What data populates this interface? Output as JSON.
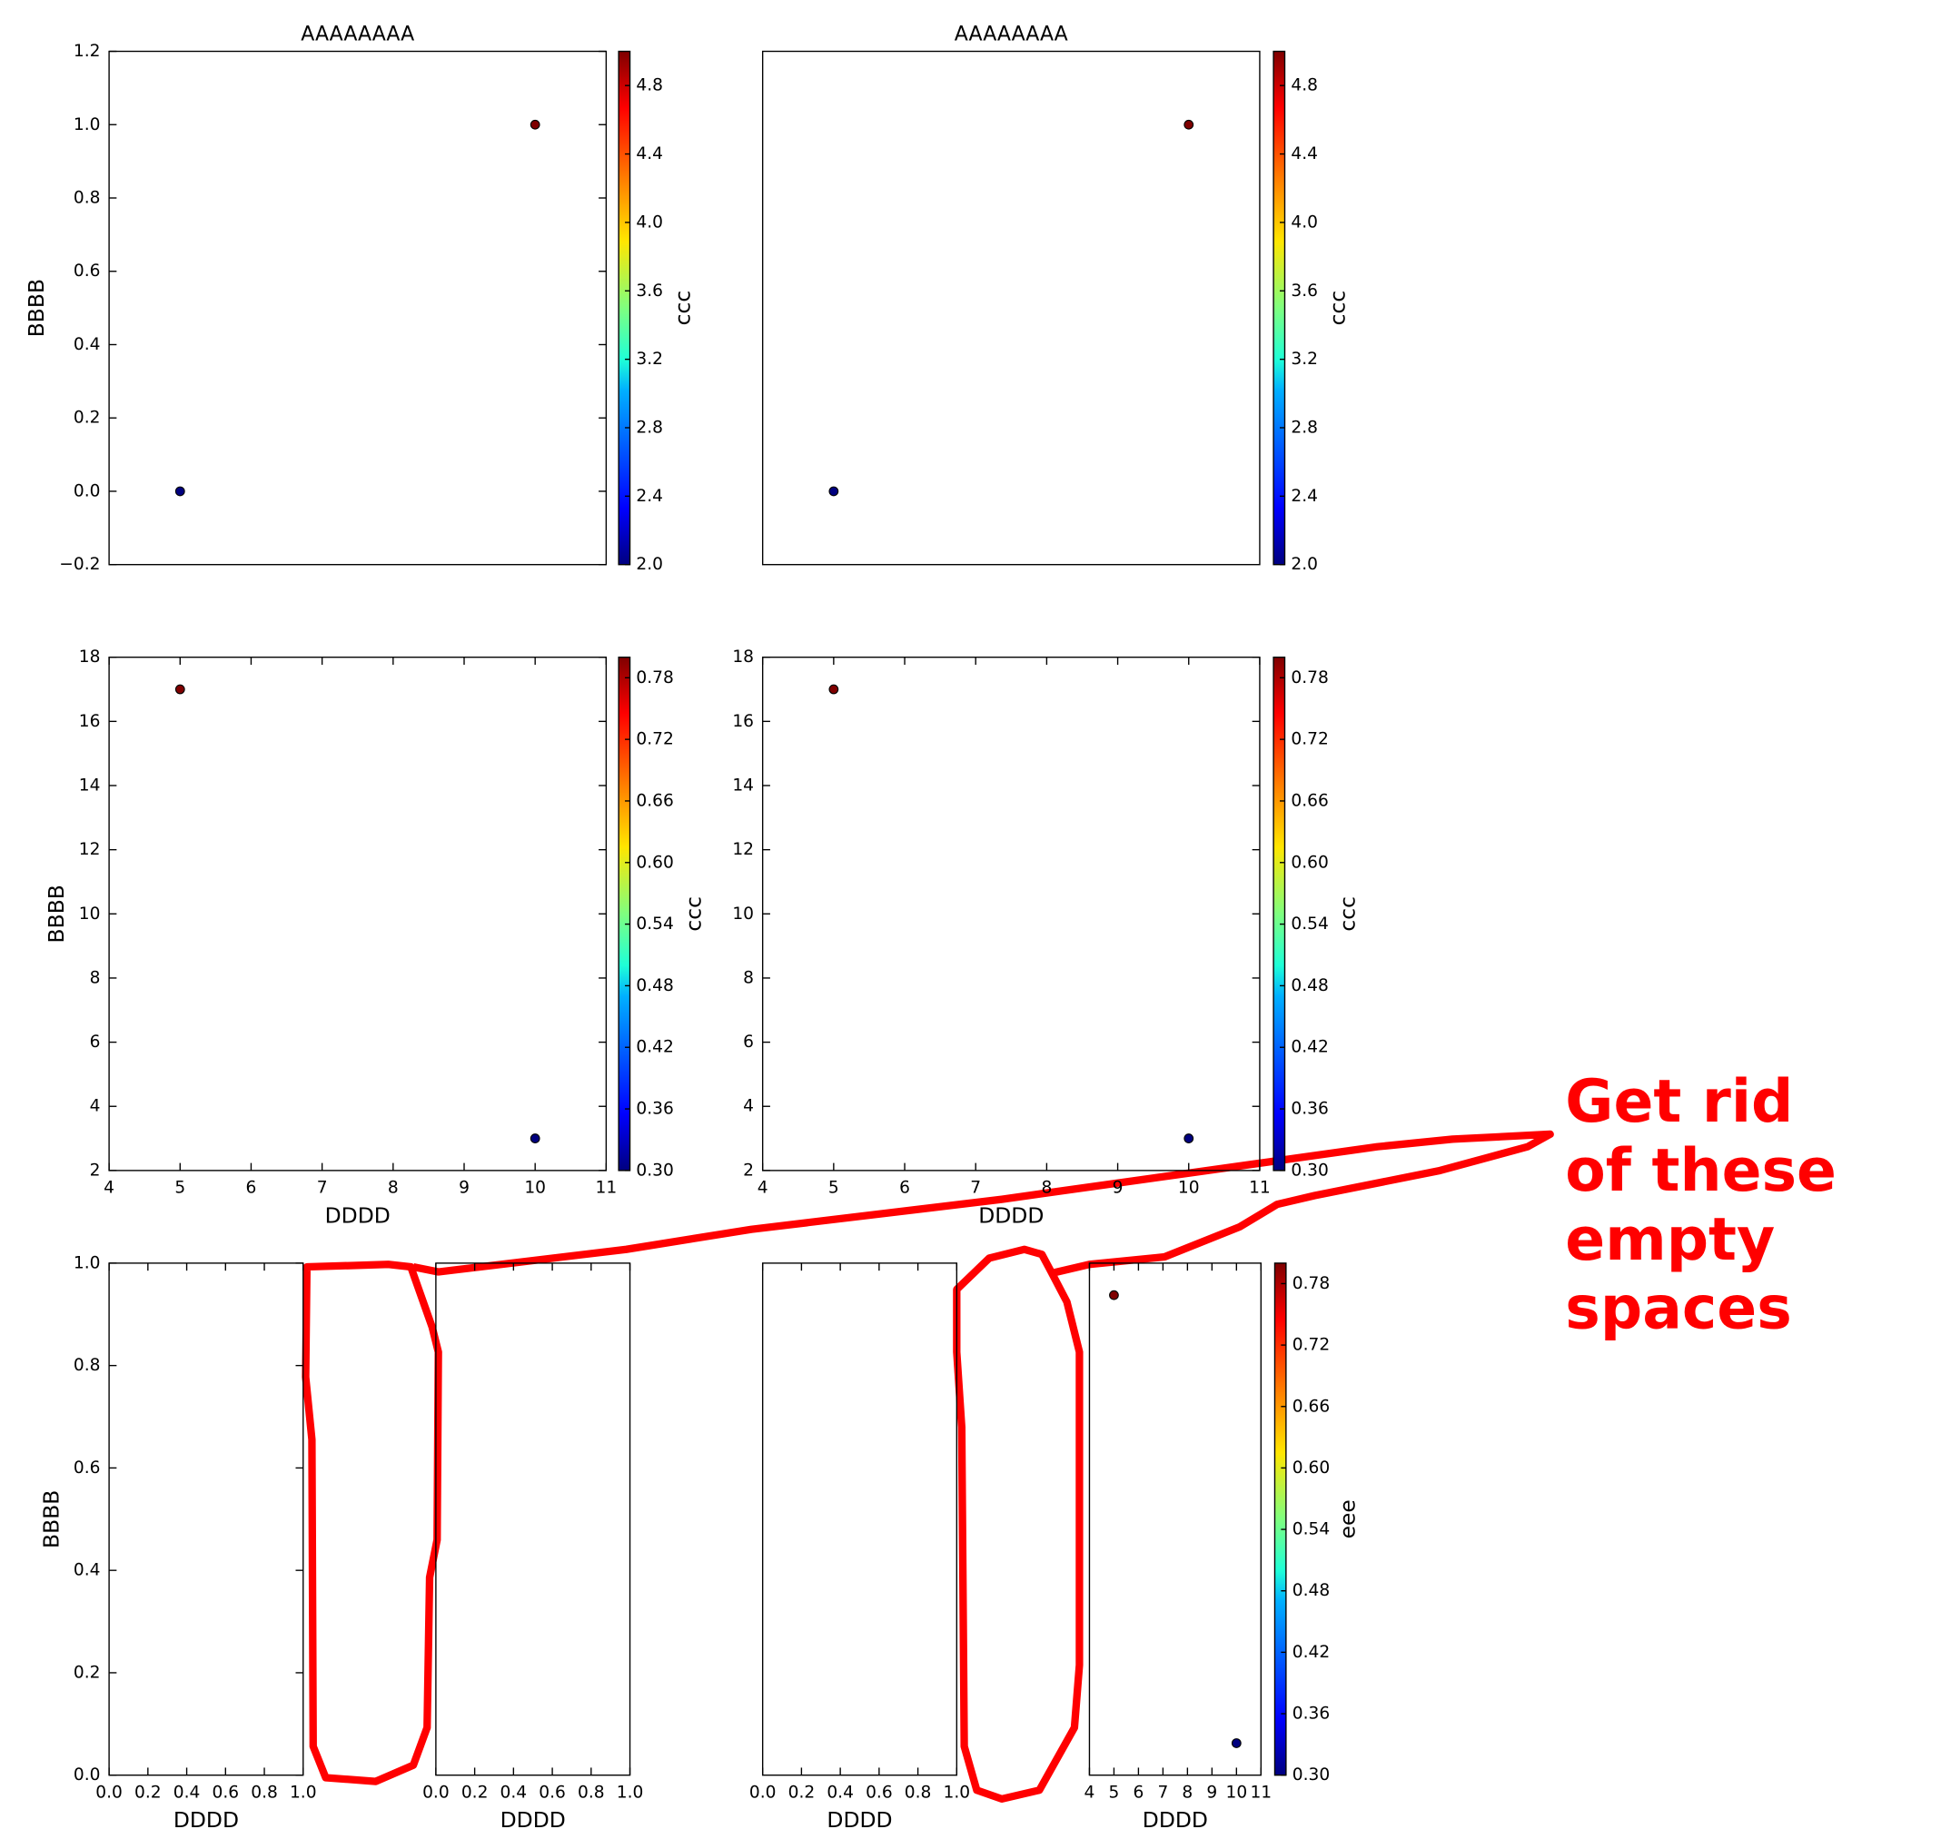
{
  "chart_data": [
    {
      "type": "scatter",
      "title": "AAAAAAAA",
      "ylabel": "BBBB",
      "x": [
        5,
        10
      ],
      "y": [
        0,
        1
      ],
      "c": [
        2,
        5
      ],
      "colors": [
        "#00007f",
        "#7f0000"
      ],
      "xlim": [
        4,
        11
      ],
      "ylim": [
        -0.2,
        1.2
      ],
      "yticks": [
        {
          "value": -0.2,
          "label": "−0.2"
        },
        {
          "value": 0,
          "label": "0.0"
        },
        0.2,
        0.4,
        0.6,
        0.8,
        {
          "value": 1,
          "label": "1.0"
        },
        1.2
      ],
      "colorbar": {
        "label": "ccc",
        "lim": [
          2,
          5
        ],
        "ticks": [
          {
            "value": 2,
            "label": "2.0"
          },
          2.4,
          2.8,
          3.2,
          3.6,
          {
            "value": 4,
            "label": "4.0"
          },
          4.4,
          4.8
        ]
      }
    },
    {
      "type": "scatter",
      "title": "AAAAAAAA",
      "x": [
        5,
        10
      ],
      "y": [
        0,
        1
      ],
      "c": [
        2,
        5
      ],
      "colors": [
        "#00007f",
        "#7f0000"
      ],
      "xlim": [
        4,
        11
      ],
      "ylim": [
        -0.2,
        1.2
      ],
      "colorbar": {
        "label": "ccc",
        "lim": [
          2,
          5
        ],
        "ticks": [
          {
            "value": 2,
            "label": "2.0"
          },
          2.4,
          2.8,
          3.2,
          3.6,
          {
            "value": 4,
            "label": "4.0"
          },
          4.4,
          4.8
        ]
      }
    },
    {
      "type": "scatter",
      "ylabel": "BBBB",
      "xlabel": "DDDD",
      "x": [
        5,
        10
      ],
      "y": [
        17,
        3
      ],
      "c": [
        0.8,
        0.3
      ],
      "colors": [
        "#7f0000",
        "#00007f"
      ],
      "xlim": [
        4,
        11
      ],
      "ylim": [
        2,
        18
      ],
      "xticks": [
        4,
        5,
        6,
        7,
        8,
        9,
        10,
        11
      ],
      "yticks": [
        2,
        4,
        6,
        8,
        10,
        12,
        14,
        16,
        18
      ],
      "colorbar": {
        "label": "ccc",
        "lim": [
          0.3,
          0.8
        ],
        "ticks": [
          {
            "value": 0.3,
            "label": "0.30"
          },
          0.36,
          0.42,
          0.48,
          0.54,
          {
            "value": 0.6,
            "label": "0.60"
          },
          0.66,
          0.72,
          0.78
        ]
      }
    },
    {
      "type": "scatter",
      "xlabel": "DDDD",
      "x": [
        5,
        10
      ],
      "y": [
        17,
        3
      ],
      "c": [
        0.8,
        0.3
      ],
      "colors": [
        "#7f0000",
        "#00007f"
      ],
      "xlim": [
        4,
        11
      ],
      "ylim": [
        2,
        18
      ],
      "xticks": [
        4,
        5,
        6,
        7,
        8,
        9,
        10,
        11
      ],
      "yticks": [
        2,
        4,
        6,
        8,
        10,
        12,
        14,
        16,
        18
      ],
      "colorbar": {
        "label": "ccc",
        "lim": [
          0.3,
          0.8
        ],
        "ticks": [
          {
            "value": 0.3,
            "label": "0.30"
          },
          0.36,
          0.42,
          0.48,
          0.54,
          {
            "value": 0.6,
            "label": "0.60"
          },
          0.66,
          0.72,
          0.78
        ]
      }
    },
    {
      "type": "scatter",
      "ylabel": "BBBB",
      "xlabel": "DDDD",
      "xlim": [
        0,
        1
      ],
      "ylim": [
        0,
        1
      ],
      "xticks": [
        {
          "value": 0,
          "label": "0.0"
        },
        0.2,
        0.4,
        0.6,
        0.8,
        {
          "value": 1,
          "label": "1.0"
        }
      ],
      "yticks": [
        {
          "value": 0,
          "label": "0.0"
        },
        0.2,
        0.4,
        0.6,
        0.8,
        {
          "value": 1,
          "label": "1.0"
        }
      ]
    },
    {
      "type": "scatter",
      "xlabel": "DDDD",
      "xlim": [
        0,
        1
      ],
      "ylim": [
        0,
        1
      ],
      "xticks": [
        {
          "value": 0,
          "label": "0.0"
        },
        0.2,
        0.4,
        0.6,
        0.8,
        {
          "value": 1,
          "label": "1.0"
        }
      ]
    },
    {
      "type": "scatter",
      "xlabel": "DDDD",
      "xlim": [
        0,
        1
      ],
      "ylim": [
        0,
        1
      ],
      "xticks": [
        {
          "value": 0,
          "label": "0.0"
        },
        0.2,
        0.4,
        0.6,
        0.8,
        {
          "value": 1,
          "label": "1.0"
        }
      ]
    },
    {
      "type": "scatter",
      "xlabel": "DDDD",
      "x": [
        5,
        10
      ],
      "y": [
        17,
        3
      ],
      "c": [
        0.8,
        0.3
      ],
      "colors": [
        "#7f0000",
        "#00007f"
      ],
      "xlim": [
        4,
        11
      ],
      "ylim": [
        2,
        18
      ],
      "xticks": [
        4,
        5,
        6,
        7,
        8,
        9,
        10,
        11
      ],
      "colorbar": {
        "label": "eee",
        "lim": [
          0.3,
          0.8
        ],
        "ticks": [
          {
            "value": 0.3,
            "label": "0.30"
          },
          0.36,
          0.42,
          0.48,
          0.54,
          {
            "value": 0.6,
            "label": "0.60"
          },
          0.66,
          0.72,
          0.78
        ]
      }
    }
  ],
  "annotation": {
    "lines": [
      "Get rid",
      "of these",
      "empty",
      "spaces"
    ],
    "color": "#ff0000"
  }
}
